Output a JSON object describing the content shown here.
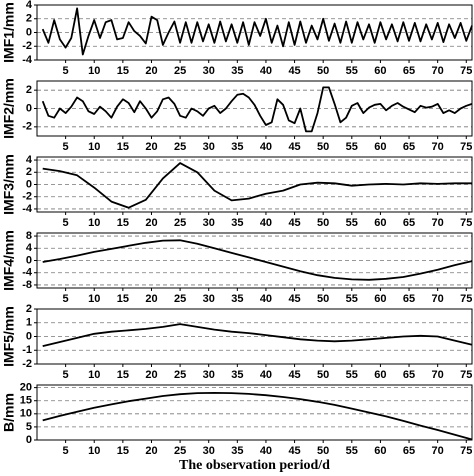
{
  "chart_data": [
    {
      "type": "line",
      "ylabel": "IMF1/mm",
      "x": [
        1,
        2,
        3,
        4,
        5,
        6,
        7,
        8,
        9,
        10,
        11,
        12,
        13,
        14,
        15,
        16,
        17,
        18,
        19,
        20,
        21,
        22,
        23,
        24,
        25,
        26,
        27,
        28,
        29,
        30,
        31,
        32,
        33,
        34,
        35,
        36,
        37,
        38,
        39,
        40,
        41,
        42,
        43,
        44,
        45,
        46,
        47,
        48,
        49,
        50,
        51,
        52,
        53,
        54,
        55,
        56,
        57,
        58,
        59,
        60,
        61,
        62,
        63,
        64,
        65,
        66,
        67,
        68,
        69,
        70,
        71,
        72,
        73,
        74,
        75,
        76
      ],
      "series": [
        {
          "color": "#000000",
          "values": [
            0.5,
            -1.5,
            1.8,
            -1,
            -2.2,
            -0.8,
            3.5,
            -3.2,
            -0.5,
            1.8,
            -0.8,
            1.5,
            1.8,
            -1,
            -0.8,
            1.5,
            0.2,
            -0.5,
            -1.6,
            2.3,
            1.8,
            -1.8,
            0,
            1.6,
            -1.5,
            1.5,
            -1.5,
            1.5,
            -1.3,
            1.2,
            -1.5,
            1.6,
            -1.3,
            1.2,
            -1.5,
            1.5,
            -1.8,
            1.5,
            -0.5,
            2,
            -1.5,
            1,
            -2,
            1.5,
            -1.8,
            1.6,
            -1.5,
            1,
            -1,
            2,
            -1.2,
            1.3,
            -1.5,
            1.6,
            -1.5,
            1.5,
            -1,
            1.2,
            -1.5,
            1.5,
            -1,
            1.2,
            -1.3,
            1.5,
            -1.2,
            1.4,
            -1.3,
            1.2,
            -1,
            1.4,
            -1.4,
            1.2,
            -0.8,
            1.4,
            -1.2,
            1
          ]
        }
      ],
      "xlim": [
        0,
        76
      ],
      "xticks": [
        5,
        10,
        15,
        20,
        25,
        30,
        35,
        40,
        45,
        50,
        55,
        60,
        65,
        70,
        75
      ],
      "ylim": [
        -4,
        4
      ],
      "yticks": [
        -4,
        -2,
        0,
        2,
        4
      ],
      "grid": true
    },
    {
      "type": "line",
      "ylabel": "IMF2/mm",
      "x": [
        1,
        2,
        3,
        4,
        5,
        6,
        7,
        8,
        9,
        10,
        11,
        12,
        13,
        14,
        15,
        16,
        17,
        18,
        19,
        20,
        21,
        22,
        23,
        24,
        25,
        26,
        27,
        28,
        29,
        30,
        31,
        32,
        33,
        34,
        35,
        36,
        37,
        38,
        39,
        40,
        41,
        42,
        43,
        44,
        45,
        46,
        47,
        48,
        49,
        50,
        51,
        52,
        53,
        54,
        55,
        56,
        57,
        58,
        59,
        60,
        61,
        62,
        63,
        64,
        65,
        66,
        67,
        68,
        69,
        70,
        71,
        72,
        73,
        74,
        75,
        76
      ],
      "series": [
        {
          "color": "#000000",
          "values": [
            0.8,
            -0.8,
            -1,
            0,
            -0.5,
            0.2,
            1.2,
            0.8,
            -0.3,
            -0.6,
            0.2,
            -0.3,
            -1,
            0.2,
            1,
            0.6,
            -0.4,
            0.8,
            0,
            -1,
            -0.3,
            1,
            1.2,
            0.5,
            -0.8,
            -1,
            0,
            -0.3,
            -0.8,
            0,
            0.3,
            -0.5,
            0,
            0.8,
            1.5,
            1.6,
            1.2,
            0.4,
            -0.8,
            -1.8,
            -1.5,
            1,
            0.4,
            -1.3,
            -1.6,
            0,
            -2.5,
            -2.5,
            -0.5,
            2.3,
            2.3,
            0.5,
            -1.5,
            -1,
            0.3,
            0.6,
            -0.5,
            0.1,
            0.4,
            0.5,
            -0.2,
            0.3,
            0.6,
            0.2,
            -0.1,
            -0.4,
            0.3,
            0.1,
            0.2,
            0.5,
            -0.5,
            -0.2,
            -0.5,
            0,
            0.3,
            0.5
          ]
        }
      ],
      "xlim": [
        0,
        76
      ],
      "xticks": [
        5,
        10,
        15,
        20,
        25,
        30,
        35,
        40,
        45,
        50,
        55,
        60,
        65,
        70,
        75
      ],
      "ylim": [
        -3,
        3
      ],
      "yticks": [
        -2,
        0,
        2
      ],
      "grid": true
    },
    {
      "type": "line",
      "ylabel": "IMF3/mm",
      "x": [
        1,
        4,
        7,
        10,
        13,
        16,
        19,
        22,
        25,
        28,
        31,
        34,
        37,
        40,
        43,
        46,
        49,
        52,
        55,
        58,
        61,
        64,
        67,
        70,
        73,
        76
      ],
      "series": [
        {
          "color": "#000000",
          "values": [
            2.6,
            2.2,
            1.5,
            -0.5,
            -2.8,
            -3.8,
            -2.5,
            1,
            3.5,
            2,
            -1,
            -2.6,
            -2.3,
            -1.5,
            -1,
            0,
            0.3,
            0.2,
            -0.2,
            0,
            0.1,
            0,
            0.2,
            0.1,
            0.2,
            0.2
          ]
        }
      ],
      "xlim": [
        0,
        76
      ],
      "xticks": [
        5,
        10,
        15,
        20,
        25,
        30,
        35,
        40,
        45,
        50,
        55,
        60,
        65,
        70,
        75
      ],
      "ylim": [
        -4.5,
        4.5
      ],
      "yticks": [
        -4,
        -2,
        0,
        2,
        4
      ],
      "grid": true
    },
    {
      "type": "line",
      "ylabel": "IMF4/mm",
      "x": [
        1,
        4,
        7,
        10,
        13,
        16,
        19,
        22,
        25,
        28,
        31,
        34,
        37,
        40,
        43,
        46,
        49,
        52,
        55,
        58,
        61,
        64,
        67,
        70,
        73,
        76
      ],
      "series": [
        {
          "color": "#000000",
          "values": [
            -0.5,
            0.5,
            1.6,
            2.8,
            3.8,
            4.8,
            5.8,
            6.5,
            6.6,
            5.5,
            4,
            2.5,
            1,
            -0.5,
            -2,
            -3.5,
            -4.8,
            -5.7,
            -6.2,
            -6.3,
            -6,
            -5.4,
            -4.3,
            -3,
            -1.5,
            -0.2
          ]
        }
      ],
      "xlim": [
        0,
        76
      ],
      "xticks": [
        5,
        10,
        15,
        20,
        25,
        30,
        35,
        40,
        45,
        50,
        55,
        60,
        65,
        70,
        75
      ],
      "ylim": [
        -9,
        9
      ],
      "yticks": [
        -8,
        -4,
        0,
        4,
        8
      ],
      "grid": true
    },
    {
      "type": "line",
      "ylabel": "IMF5/mm",
      "x": [
        1,
        4,
        7,
        10,
        13,
        16,
        19,
        22,
        25,
        28,
        31,
        34,
        37,
        40,
        43,
        46,
        49,
        52,
        55,
        58,
        61,
        64,
        67,
        70,
        73,
        76
      ],
      "series": [
        {
          "color": "#000000",
          "values": [
            -0.7,
            -0.4,
            -0.1,
            0.2,
            0.35,
            0.45,
            0.55,
            0.7,
            0.9,
            0.7,
            0.5,
            0.35,
            0.25,
            0.1,
            -0.05,
            -0.2,
            -0.3,
            -0.35,
            -0.3,
            -0.2,
            -0.1,
            0,
            0.05,
            0,
            -0.3,
            -0.6
          ]
        }
      ],
      "xlim": [
        0,
        76
      ],
      "xticks": [
        5,
        10,
        15,
        20,
        25,
        30,
        35,
        40,
        45,
        50,
        55,
        60,
        65,
        70,
        75
      ],
      "ylim": [
        -2,
        2
      ],
      "yticks": [
        -2,
        -1,
        0,
        1,
        2
      ],
      "grid": true
    },
    {
      "type": "line",
      "ylabel": "B/mm",
      "xlabel": "The observation period/d",
      "x": [
        1,
        4,
        7,
        10,
        13,
        16,
        19,
        22,
        25,
        28,
        31,
        34,
        37,
        40,
        43,
        46,
        49,
        52,
        55,
        58,
        61,
        64,
        67,
        70,
        73,
        76
      ],
      "series": [
        {
          "color": "#000000",
          "values": [
            7.5,
            9.2,
            10.8,
            12.3,
            13.6,
            14.8,
            15.8,
            16.8,
            17.5,
            17.9,
            18,
            17.9,
            17.6,
            17.1,
            16.4,
            15.6,
            14.6,
            13.4,
            12,
            10.5,
            9,
            7.3,
            5.5,
            3.8,
            2,
            0.2
          ]
        }
      ],
      "xlim": [
        0,
        76
      ],
      "xticks": [
        5,
        10,
        15,
        20,
        25,
        30,
        35,
        40,
        45,
        50,
        55,
        60,
        65,
        70,
        75
      ],
      "ylim": [
        0,
        21
      ],
      "yticks": [
        0,
        5,
        10,
        15,
        20
      ],
      "grid": true
    }
  ]
}
